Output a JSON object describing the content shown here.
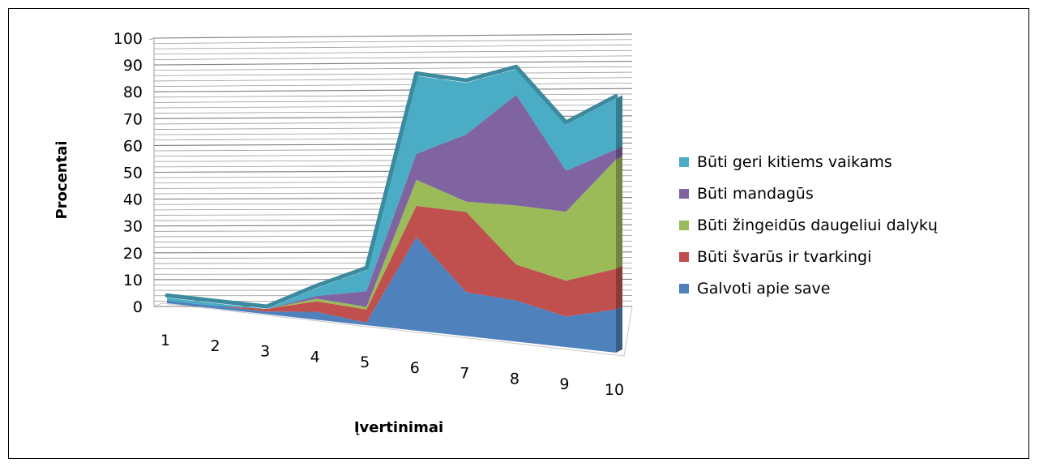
{
  "chart_data": {
    "type": "area",
    "style": "3d-stacked-area",
    "xlabel": "Įvertinimai",
    "ylabel": "Procentai",
    "categories": [
      "1",
      "2",
      "3",
      "4",
      "5",
      "6",
      "7",
      "8",
      "9",
      "10"
    ],
    "yticks": [
      "0",
      "10",
      "20",
      "30",
      "40",
      "50",
      "60",
      "70",
      "80",
      "90",
      "100"
    ],
    "ylim": [
      0,
      100
    ],
    "grid": true,
    "legend_position": "right",
    "series": [
      {
        "name": "Galvoti apie save",
        "color": "#4F81BD",
        "values": [
          1,
          1,
          1,
          3,
          1,
          36,
          17,
          16,
          12,
          17
        ]
      },
      {
        "name": "Būti švarūs ir tvarkingi",
        "color": "#C0504D",
        "values": [
          0,
          0,
          1,
          4,
          5,
          12,
          31,
          14,
          14,
          16
        ]
      },
      {
        "name": "Būti žingeidūs daugeliui dalykų",
        "color": "#9BBB59",
        "values": [
          0,
          0,
          0,
          1,
          1,
          10,
          4,
          23,
          27,
          43
        ]
      },
      {
        "name": "Būti mandagūs",
        "color": "#8064A2",
        "values": [
          0,
          0,
          0,
          1,
          6,
          10,
          26,
          43,
          16,
          4
        ]
      },
      {
        "name": "Būti geri kitiems vaikams",
        "color": "#4BACC6",
        "values": [
          1,
          1,
          0,
          3,
          8,
          30,
          20,
          10,
          18,
          20
        ]
      }
    ]
  }
}
